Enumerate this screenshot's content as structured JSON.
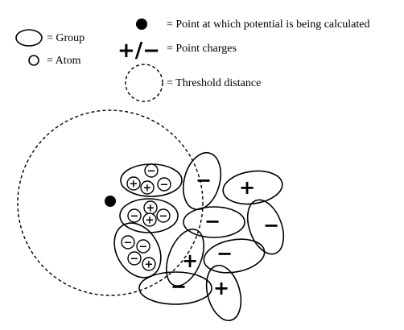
{
  "legend": {
    "group_label": "= Group",
    "atom_label": "= Atom",
    "point_label": "= Point at which potential is being calculated",
    "charges_symbol": "+/−",
    "charges_label": "= Point charges",
    "threshold_label": "= Threshold distance"
  },
  "diagram": {
    "plus": "+",
    "minus": "−"
  }
}
